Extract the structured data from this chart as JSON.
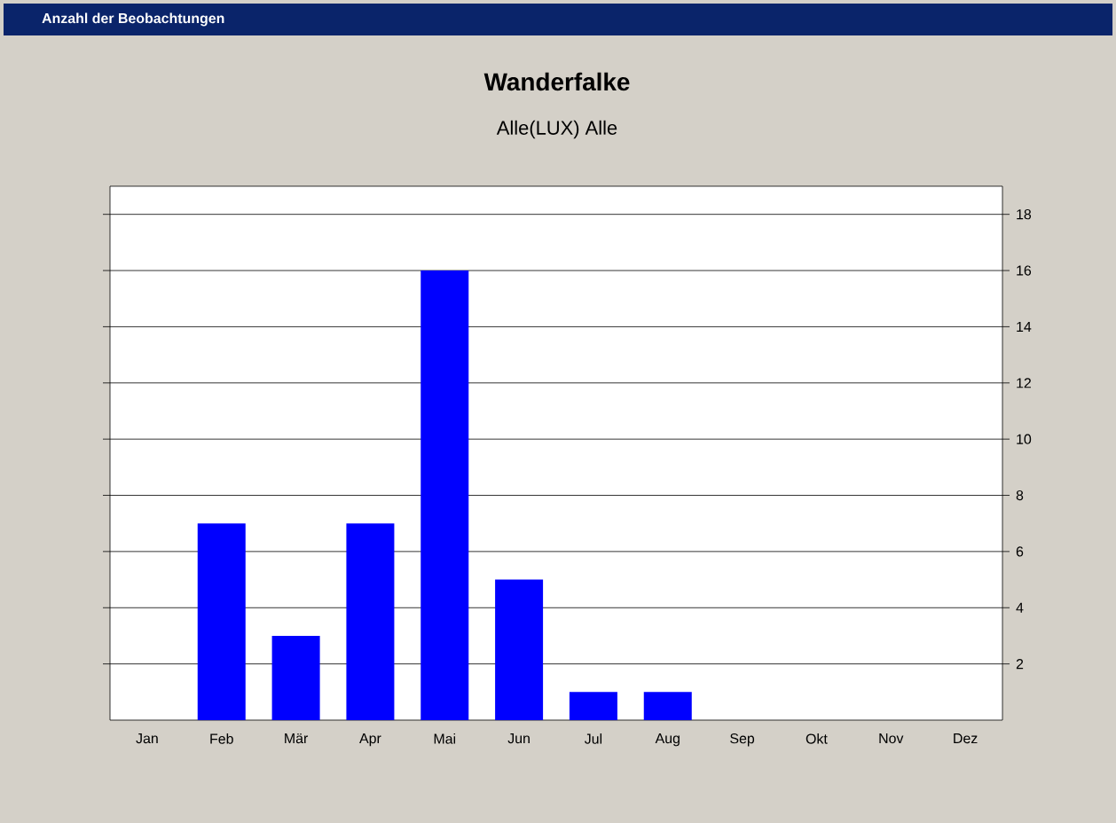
{
  "chart_data": {
    "type": "bar",
    "title": "Wanderfalke",
    "subtitle": "Alle(LUX) Alle",
    "annotations": [
      "Anzahl der Beobachtungen"
    ],
    "categories": [
      "Jan",
      "Feb",
      "Mär",
      "Apr",
      "Mai",
      "Jun",
      "Jul",
      "Aug",
      "Sep",
      "Okt",
      "Nov",
      "Dez"
    ],
    "values": [
      0,
      7,
      3,
      7,
      16,
      5,
      1,
      1,
      0,
      0,
      0,
      0
    ],
    "color": "#0000ff",
    "ylim": [
      0,
      19
    ],
    "yticks": [
      2,
      4,
      6,
      8,
      10,
      12,
      14,
      16,
      18
    ],
    "grid": "y"
  }
}
